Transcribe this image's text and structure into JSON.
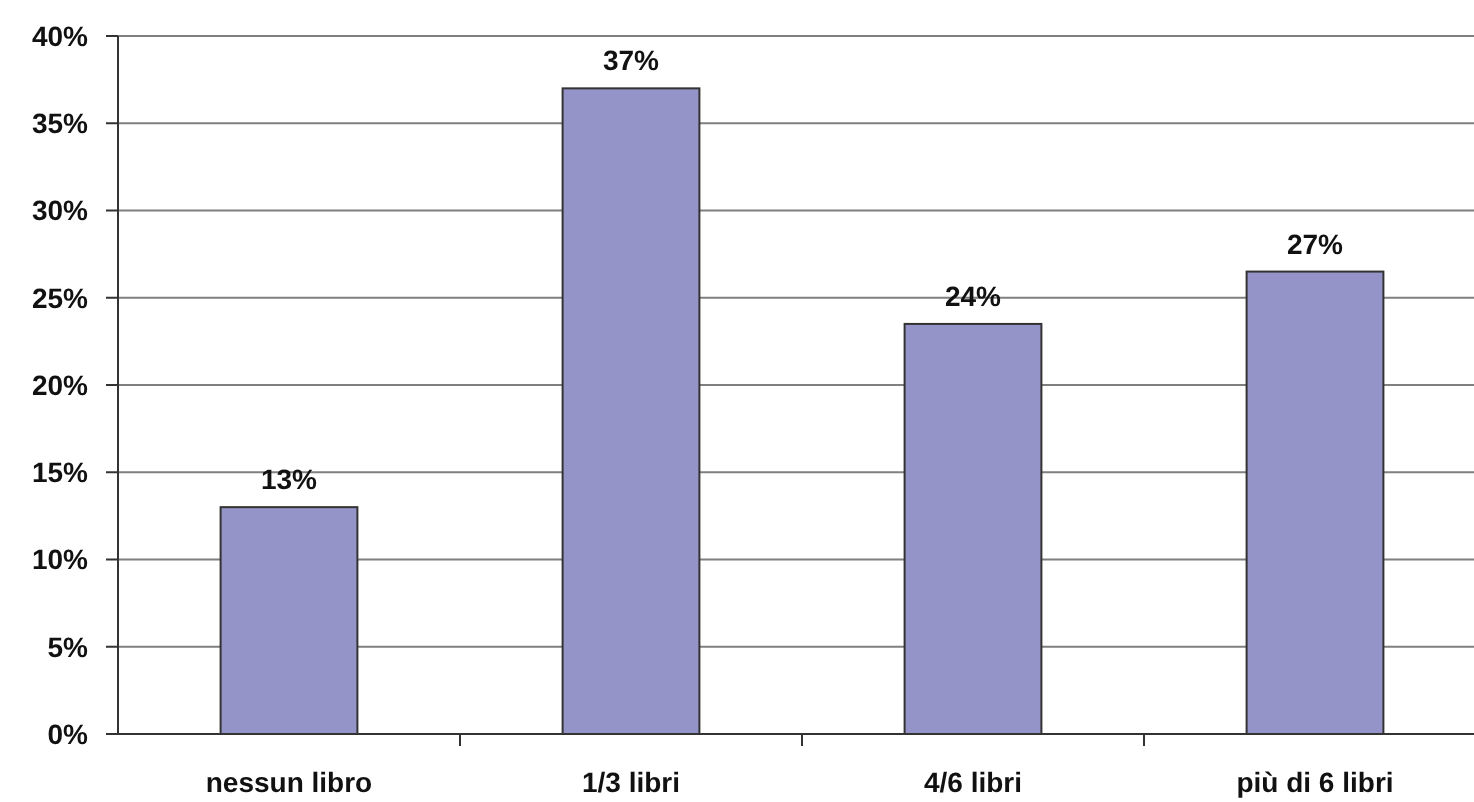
{
  "chart_data": {
    "type": "bar",
    "categories": [
      "nessun libro",
      "1/3 libri",
      "4/6 libri",
      "più di 6 libri"
    ],
    "values": [
      13,
      37,
      23.5,
      26.5
    ],
    "value_labels": [
      "13%",
      "37%",
      "24%",
      "27%"
    ],
    "color": "#9594c8",
    "ylim": [
      0,
      40
    ],
    "yticks": [
      {
        "value": 0,
        "label": "0%"
      },
      {
        "value": 5,
        "label": "5%"
      },
      {
        "value": 10,
        "label": "10%"
      },
      {
        "value": 15,
        "label": "15%"
      },
      {
        "value": 20,
        "label": "20%"
      },
      {
        "value": 25,
        "label": "25%"
      },
      {
        "value": 30,
        "label": "30%"
      },
      {
        "value": 35,
        "label": "35%"
      },
      {
        "value": 40,
        "label": "40%"
      }
    ],
    "grid": "y"
  }
}
